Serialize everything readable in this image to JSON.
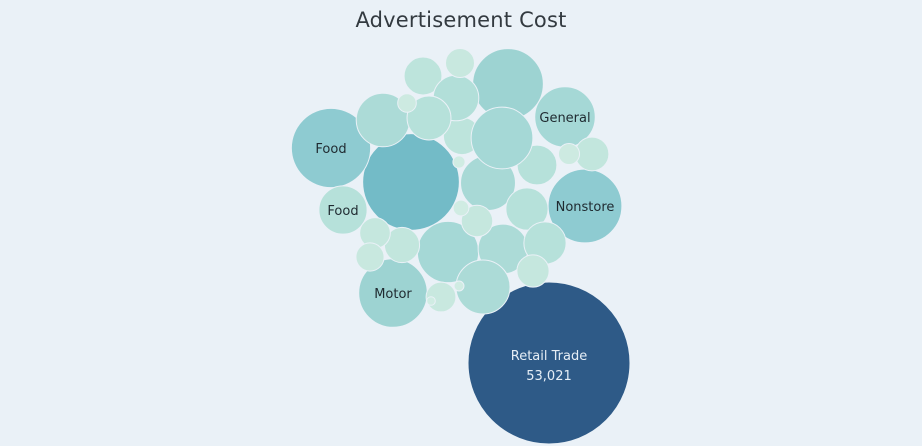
{
  "chart_data": {
    "type": "bubble",
    "title": "Advertisement Cost",
    "bubbles": [
      {
        "label": "Retail Trade",
        "value": 53021,
        "value_label": "53,021",
        "color": "#2e5a87"
      },
      {
        "label": "",
        "value": 18900,
        "color": "#73bbc7"
      },
      {
        "label": "Nonstore",
        "value": 11000,
        "color": "#8ecbd1"
      },
      {
        "label": "Food",
        "value": 12700,
        "color": "#8ecbd1"
      },
      {
        "label": "Motor",
        "value": 9500,
        "color": "#9dd3d2"
      },
      {
        "label": "General",
        "value": 7400,
        "color": "#a5d8d6"
      },
      {
        "label": "Food",
        "value": 4700,
        "color": "#b6e1da"
      },
      {
        "label": "",
        "value": 10100,
        "color": "#9dd3d2"
      },
      {
        "label": "",
        "value": 7600,
        "color": "#a5d8d6"
      },
      {
        "label": "",
        "value": 6100,
        "color": "#a8d9d6"
      },
      {
        "label": "",
        "value": 5000,
        "color": "#acdbd7"
      },
      {
        "label": "",
        "value": 3600,
        "color": "#b6e1da"
      },
      {
        "label": "",
        "value": 3200,
        "color": "#b6e1da"
      },
      {
        "label": "",
        "value": 2900,
        "color": "#bde4dc"
      },
      {
        "label": "",
        "value": 2800,
        "color": "#bde4dc"
      },
      {
        "label": "",
        "value": 7700,
        "color": "#a5d8d6"
      },
      {
        "label": "",
        "value": 5900,
        "color": "#acdbd7"
      },
      {
        "label": "",
        "value": 5800,
        "color": "#acdbd7"
      },
      {
        "label": "",
        "value": 4200,
        "color": "#b2dfd9"
      },
      {
        "label": "",
        "value": 3900,
        "color": "#b6e1da"
      },
      {
        "label": "",
        "value": 3600,
        "color": "#b6e1da"
      },
      {
        "label": "",
        "value": 2500,
        "color": "#c2e6dd"
      },
      {
        "label": "",
        "value": 1900,
        "color": "#c5e7de"
      },
      {
        "label": "",
        "value": 1800,
        "color": "#c8e8df"
      },
      {
        "label": "",
        "value": 2300,
        "color": "#c2e6dd"
      },
      {
        "label": "",
        "value": 2100,
        "color": "#c5e7de"
      },
      {
        "label": "",
        "value": 2000,
        "color": "#c5e7de"
      },
      {
        "label": "",
        "value": 1700,
        "color": "#c8e8df"
      },
      {
        "label": "",
        "value": 1600,
        "color": "#c8e8df"
      },
      {
        "label": "",
        "value": 900,
        "color": "#cdeae1"
      },
      {
        "label": "",
        "value": 700,
        "color": "#cdeae1"
      },
      {
        "label": "",
        "value": 500,
        "color": "#d0ece3"
      },
      {
        "label": "",
        "value": 300,
        "color": "#d0ece3"
      },
      {
        "label": "",
        "value": 200,
        "color": "#d0ece3"
      },
      {
        "label": "",
        "value": 150,
        "color": "#d0ece3"
      }
    ]
  }
}
